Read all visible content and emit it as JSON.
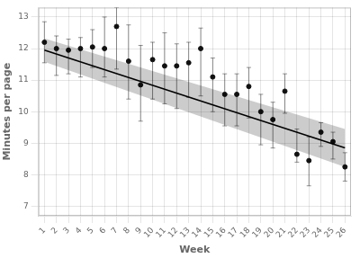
{
  "chart_data": {
    "type": "scatter",
    "xlabel": "Week",
    "ylabel": "Minutes per page",
    "xlim": [
      0.5,
      26.5
    ],
    "ylim": [
      6.7,
      13.3
    ],
    "xticks": [
      1,
      2,
      3,
      4,
      5,
      6,
      7,
      8,
      9,
      10,
      11,
      12,
      13,
      14,
      15,
      16,
      17,
      18,
      19,
      20,
      21,
      22,
      23,
      24,
      25,
      26
    ],
    "yticks": [
      7,
      8,
      9,
      10,
      11,
      12,
      13
    ],
    "grid": true,
    "series": [
      {
        "type": "line",
        "color": "#000000",
        "x": [
          1,
          26
        ],
        "values": [
          11.95,
          8.85
        ],
        "ci_lower": [
          11.58,
          8.25
        ],
        "ci_upper": [
          12.32,
          9.45
        ]
      },
      {
        "type": "scatter",
        "color": "#111111",
        "x": [
          1,
          2,
          3,
          4,
          5,
          6,
          7,
          8,
          9,
          10,
          11,
          12,
          13,
          14,
          15,
          16,
          17,
          18,
          19,
          20,
          21,
          22,
          23,
          24,
          25,
          26
        ],
        "values": [
          12.2,
          12.0,
          11.95,
          12.0,
          12.05,
          12.0,
          12.7,
          11.6,
          10.85,
          11.65,
          11.45,
          11.45,
          11.55,
          12.0,
          11.1,
          10.55,
          10.55,
          10.8,
          10.0,
          9.75,
          10.65,
          8.65,
          8.45,
          9.35,
          9.05,
          8.25
        ],
        "yerr_lo": [
          0.65,
          0.85,
          0.75,
          0.9,
          0.65,
          0.9,
          1.35,
          1.2,
          1.15,
          1.25,
          1.2,
          1.35,
          1.1,
          1.5,
          1.1,
          1.0,
          1.0,
          1.0,
          1.05,
          0.9,
          0.7,
          0.25,
          0.8,
          0.45,
          0.55,
          0.45
        ],
        "yerr_hi": [
          0.65,
          0.4,
          0.35,
          0.35,
          0.55,
          1.0,
          0.6,
          1.15,
          1.25,
          0.55,
          1.05,
          0.7,
          0.65,
          0.65,
          0.6,
          0.65,
          0.65,
          0.6,
          0.55,
          0.55,
          0.55,
          0.8,
          0.75,
          0.3,
          0.3,
          0.45
        ]
      }
    ]
  }
}
